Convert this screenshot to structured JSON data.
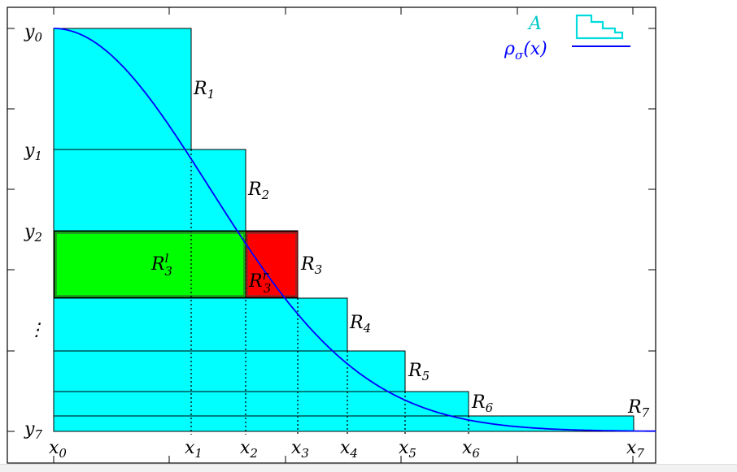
{
  "diagram": {
    "y_labels": [
      {
        "base": "y",
        "sub": "0"
      },
      {
        "base": "y",
        "sub": "1"
      },
      {
        "base": "y",
        "sub": "2"
      },
      {
        "base": "⋮",
        "sub": ""
      },
      {
        "base": "y",
        "sub": "7"
      }
    ],
    "x_labels": [
      {
        "base": "x",
        "sub": "0"
      },
      {
        "base": "x",
        "sub": "1"
      },
      {
        "base": "x",
        "sub": "2"
      },
      {
        "base": "x",
        "sub": "3"
      },
      {
        "base": "x",
        "sub": "4"
      },
      {
        "base": "x",
        "sub": "5"
      },
      {
        "base": "x",
        "sub": "6"
      },
      {
        "base": "x",
        "sub": "7"
      }
    ],
    "rect_labels": [
      {
        "base": "R",
        "sub": "1"
      },
      {
        "base": "R",
        "sub": "2"
      },
      {
        "base": "R",
        "sub": "3"
      },
      {
        "base": "R",
        "sub": "4"
      },
      {
        "base": "R",
        "sub": "5"
      },
      {
        "base": "R",
        "sub": "6"
      },
      {
        "base": "R",
        "sub": "7"
      }
    ],
    "split_left": {
      "base": "R",
      "sub": "3",
      "sup": "l"
    },
    "split_right": {
      "base": "R",
      "sub": "3",
      "sup": "r"
    },
    "legend": {
      "area_label": "A",
      "curve_label_base": "ρ",
      "curve_label_sub": "σ",
      "curve_label_arg": "(x)"
    },
    "colors": {
      "area": "#00ffff",
      "curve": "#0000ff",
      "left_split": "#00ff00",
      "right_split": "#ff0000",
      "legend_area_text": "#00c8c8"
    }
  }
}
